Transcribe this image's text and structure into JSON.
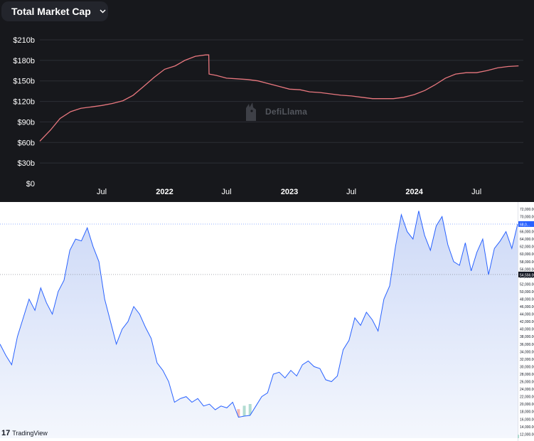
{
  "defillama": {
    "selector_label": "Total Market Cap",
    "watermark": "DefiLlama",
    "colors": {
      "background": "#17181c",
      "line": "#e8777e",
      "grid": "#2c2e35",
      "text": "#ffffff"
    }
  },
  "tradingview": {
    "logo_mark": "17",
    "logo_text": "TradingView",
    "current_price_label": "68,0...",
    "crosshair_price_label": "54,556.00",
    "colors": {
      "line": "#2962ff",
      "fill_top": "#cdd9f7",
      "fill_bottom": "#f4f7fd",
      "vol_up": "#9fd3c7",
      "vol_down": "#f3a9a4"
    }
  },
  "chart_data": [
    {
      "type": "line",
      "title": "Total Market Cap",
      "ylim": [
        0,
        210
      ],
      "y_ticks": [
        "$0",
        "$30b",
        "$60b",
        "$90b",
        "$120b",
        "$150b",
        "$180b",
        "$210b"
      ],
      "x_ticks": [
        "Jul",
        "2022",
        "Jul",
        "2023",
        "Jul",
        "2024",
        "Jul"
      ],
      "grid": true,
      "series": [
        {
          "unit": "billion USD",
          "points": [
            [
              "2021-01",
              62
            ],
            [
              "2021-02",
              78
            ],
            [
              "2021-03",
              95
            ],
            [
              "2021-04",
              105
            ],
            [
              "2021-05",
              110
            ],
            [
              "2021-06",
              112
            ],
            [
              "2021-07",
              114
            ],
            [
              "2021-08",
              117
            ],
            [
              "2021-09",
              121
            ],
            [
              "2021-10",
              129
            ],
            [
              "2021-11",
              142
            ],
            [
              "2021-12",
              155
            ],
            [
              "2022-01",
              167
            ],
            [
              "2022-02",
              172
            ],
            [
              "2022-03",
              180
            ],
            [
              "2022-04",
              186
            ],
            [
              "2022-05",
              188
            ],
            [
              "2022-05-10",
              188
            ],
            [
              "2022-05-11",
              160
            ],
            [
              "2022-06",
              158
            ],
            [
              "2022-07",
              154
            ],
            [
              "2022-08",
              153
            ],
            [
              "2022-09",
              152
            ],
            [
              "2022-10",
              150
            ],
            [
              "2022-11",
              146
            ],
            [
              "2022-12",
              142
            ],
            [
              "2023-01",
              138
            ],
            [
              "2023-02",
              137
            ],
            [
              "2023-03",
              134
            ],
            [
              "2023-04",
              133
            ],
            [
              "2023-05",
              131
            ],
            [
              "2023-06",
              129
            ],
            [
              "2023-07",
              128
            ],
            [
              "2023-08",
              126
            ],
            [
              "2023-09",
              124
            ],
            [
              "2023-10",
              124
            ],
            [
              "2023-11",
              124
            ],
            [
              "2023-12",
              126
            ],
            [
              "2024-01",
              130
            ],
            [
              "2024-02",
              136
            ],
            [
              "2024-03",
              144
            ],
            [
              "2024-04",
              154
            ],
            [
              "2024-05",
              160
            ],
            [
              "2024-06",
              162
            ],
            [
              "2024-07",
              162
            ],
            [
              "2024-08",
              165
            ],
            [
              "2024-09",
              169
            ],
            [
              "2024-10",
              171
            ],
            [
              "2024-11",
              172
            ]
          ]
        }
      ]
    },
    {
      "type": "area",
      "y_ticks": [
        "12,000.00",
        "14,000.00",
        "16,000.00",
        "18,000.00",
        "20,000.00",
        "22,000.00",
        "24,000.00",
        "26,000.00",
        "28,000.00",
        "30,000.00",
        "32,000.00",
        "34,000.00",
        "36,000.00",
        "38,000.00",
        "40,000.00",
        "42,000.00",
        "44,000.00",
        "46,000.00",
        "48,000.00",
        "50,000.00",
        "52,000.00",
        "54,000.00",
        "56,000.00",
        "58,000.00",
        "60,000.00",
        "62,000.00",
        "64,000.00",
        "66,000.00",
        "68,000.00",
        "70,000.00",
        "72,000.00"
      ],
      "ylim": [
        11500,
        73500
      ],
      "grid": false,
      "series": [
        {
          "values": [
            36000,
            33000,
            30500,
            38000,
            43000,
            48000,
            45000,
            51000,
            47000,
            44000,
            50000,
            53000,
            61000,
            64000,
            63500,
            67000,
            62000,
            58000,
            48000,
            42000,
            36000,
            40000,
            42000,
            46000,
            44000,
            40500,
            37500,
            31000,
            29000,
            26000,
            20500,
            21500,
            22000,
            20500,
            21500,
            19500,
            20000,
            18500,
            19500,
            19000,
            20500,
            16500,
            16800,
            17000,
            19500,
            22000,
            23000,
            28000,
            28500,
            27000,
            29000,
            27500,
            30500,
            31500,
            30000,
            29500,
            26500,
            26000,
            27500,
            34500,
            37000,
            43000,
            41000,
            44500,
            42500,
            39500,
            48000,
            51500,
            62000,
            70500,
            66000,
            64000,
            71500,
            65000,
            61000,
            67500,
            70000,
            62500,
            58000,
            57000,
            63000,
            55500,
            60500,
            64000,
            54500,
            61500,
            63500,
            66000,
            61500,
            68000
          ],
          "volume": [
            2,
            3,
            2,
            4,
            3,
            2,
            3,
            5,
            4,
            3,
            2,
            3,
            4,
            3,
            2,
            3,
            4,
            3,
            2,
            3,
            4,
            5,
            6,
            5,
            4,
            3,
            4,
            5,
            6,
            8,
            10,
            12,
            14,
            18,
            16,
            20,
            22,
            24,
            28,
            30,
            32,
            34,
            38,
            40,
            30,
            34,
            36,
            42,
            30,
            22,
            16,
            12,
            10,
            8,
            7,
            6,
            5,
            6,
            7,
            8,
            9,
            10,
            12,
            10,
            8,
            7,
            6,
            5,
            6,
            7,
            8,
            6,
            5,
            4,
            5,
            6,
            5,
            4,
            5,
            6,
            5,
            4,
            5,
            4,
            3,
            4,
            5,
            4,
            3,
            4
          ]
        }
      ]
    }
  ]
}
